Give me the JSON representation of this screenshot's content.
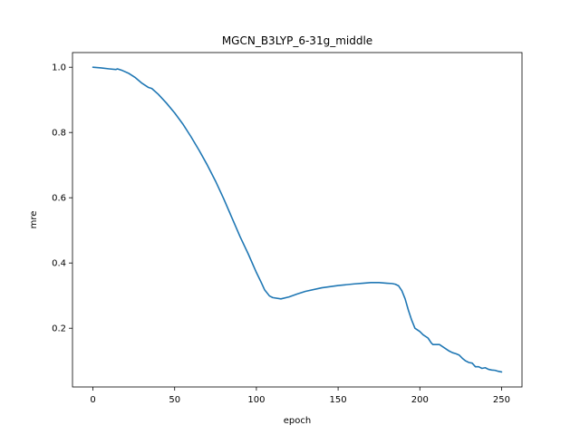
{
  "chart_data": {
    "type": "line",
    "title": "MGCN_B3LYP_6-31g_middle",
    "xlabel": "epoch",
    "ylabel": "mre",
    "xlim": [
      -12.5,
      262.5
    ],
    "ylim": [
      0.02,
      1.045
    ],
    "xticks": [
      0,
      50,
      100,
      150,
      200,
      250
    ],
    "yticks": [
      0.2,
      0.4,
      0.6,
      0.8,
      1.0
    ],
    "xtick_labels": [
      "0",
      "50",
      "100",
      "150",
      "200",
      "250"
    ],
    "ytick_labels": [
      "0.2",
      "0.4",
      "0.6",
      "0.8",
      "1.0"
    ],
    "grid": false,
    "legend": "none",
    "series": [
      {
        "color": "#1f77b4",
        "x": [
          0,
          5,
          10,
          14,
          15,
          18,
          22,
          26,
          30,
          34,
          36,
          40,
          45,
          50,
          55,
          60,
          65,
          70,
          75,
          80,
          85,
          90,
          95,
          100,
          103,
          105,
          108,
          110,
          115,
          120,
          125,
          130,
          140,
          150,
          160,
          165,
          170,
          175,
          180,
          183,
          185,
          187,
          189,
          191,
          193,
          195,
          197,
          200,
          202,
          205,
          207,
          208,
          212,
          215,
          218,
          220,
          222,
          224,
          226,
          228,
          230,
          232,
          234,
          236,
          238,
          240,
          242,
          244,
          246,
          248,
          250
        ],
        "y": [
          1.0,
          0.998,
          0.995,
          0.993,
          0.995,
          0.99,
          0.981,
          0.968,
          0.951,
          0.938,
          0.935,
          0.917,
          0.89,
          0.86,
          0.826,
          0.787,
          0.745,
          0.7,
          0.651,
          0.597,
          0.539,
          0.481,
          0.428,
          0.371,
          0.34,
          0.318,
          0.299,
          0.294,
          0.29,
          0.296,
          0.305,
          0.313,
          0.324,
          0.331,
          0.336,
          0.338,
          0.34,
          0.34,
          0.338,
          0.337,
          0.335,
          0.33,
          0.315,
          0.29,
          0.255,
          0.225,
          0.2,
          0.19,
          0.18,
          0.17,
          0.155,
          0.15,
          0.15,
          0.14,
          0.13,
          0.125,
          0.122,
          0.118,
          0.108,
          0.1,
          0.095,
          0.093,
          0.082,
          0.082,
          0.077,
          0.079,
          0.074,
          0.072,
          0.071,
          0.068,
          0.066
        ]
      }
    ]
  }
}
